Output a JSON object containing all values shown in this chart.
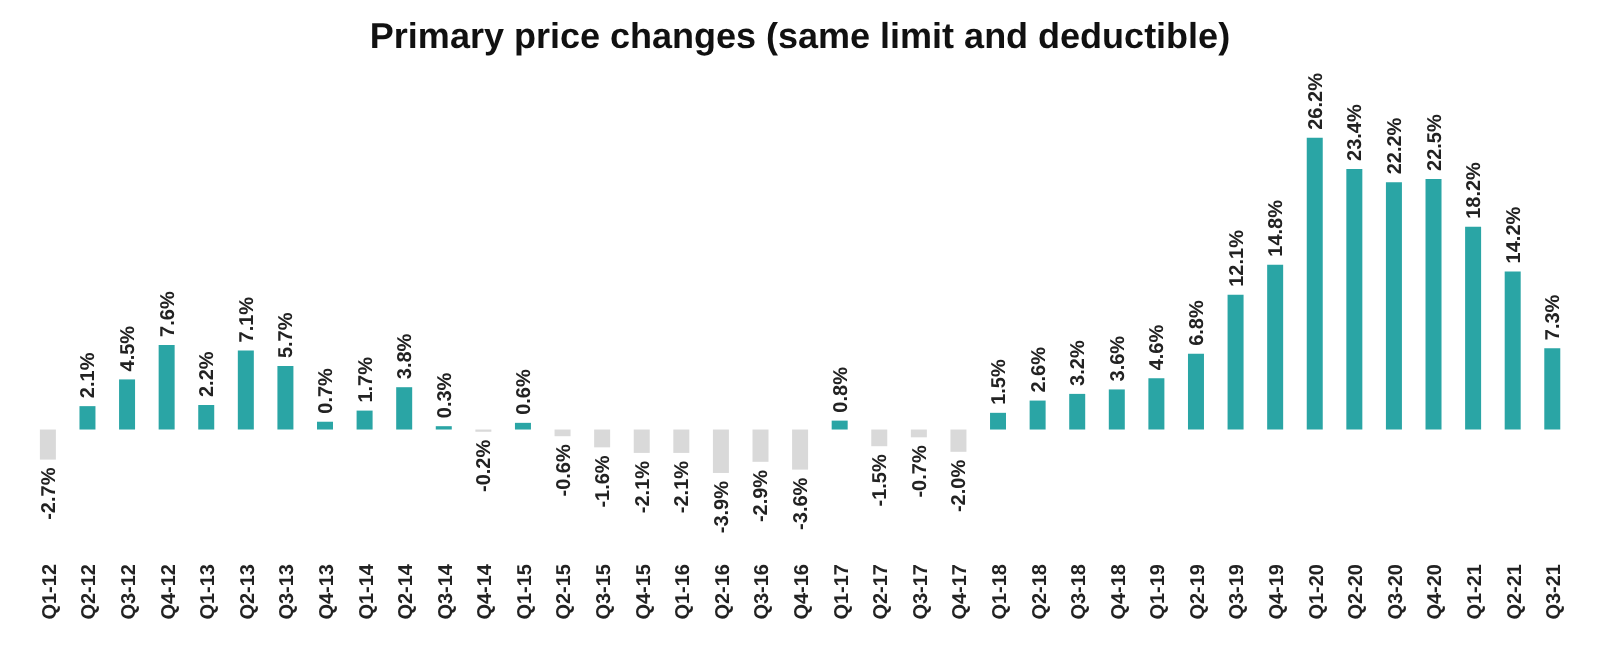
{
  "chart_data": {
    "type": "bar",
    "title": "Primary price changes (same limit and deductible)",
    "categories": [
      "Q1-12",
      "Q2-12",
      "Q3-12",
      "Q4-12",
      "Q1-13",
      "Q2-13",
      "Q3-13",
      "Q4-13",
      "Q1-14",
      "Q2-14",
      "Q3-14",
      "Q4-14",
      "Q1-15",
      "Q2-15",
      "Q3-15",
      "Q4-15",
      "Q1-16",
      "Q2-16",
      "Q3-16",
      "Q4-16",
      "Q1-17",
      "Q2-17",
      "Q3-17",
      "Q4-17",
      "Q1-18",
      "Q2-18",
      "Q3-18",
      "Q4-18",
      "Q1-19",
      "Q2-19",
      "Q3-19",
      "Q4-19",
      "Q1-20",
      "Q2-20",
      "Q3-20",
      "Q4-20",
      "Q1-21",
      "Q2-21",
      "Q3-21"
    ],
    "values": [
      -2.7,
      2.1,
      4.5,
      7.6,
      2.2,
      7.1,
      5.7,
      0.7,
      1.7,
      3.8,
      0.3,
      -0.2,
      0.6,
      -0.6,
      -1.6,
      -2.1,
      -2.1,
      -3.9,
      -2.9,
      -3.6,
      0.8,
      -1.5,
      -0.7,
      -2.0,
      1.5,
      2.6,
      3.2,
      3.6,
      4.6,
      6.8,
      12.1,
      14.8,
      26.2,
      23.4,
      22.2,
      22.5,
      18.2,
      14.2,
      7.3
    ],
    "value_labels": [
      "-2.7%",
      "2.1%",
      "4.5%",
      "7.6%",
      "2.2%",
      "7.1%",
      "5.7%",
      "0.7%",
      "1.7%",
      "3.8%",
      "0.3%",
      "-0.2%",
      "0.6%",
      "-0.6%",
      "-1.6%",
      "-2.1%",
      "-2.1%",
      "-3.9%",
      "-2.9%",
      "-3.6%",
      "0.8%",
      "-1.5%",
      "-0.7%",
      "-2.0%",
      "1.5%",
      "2.6%",
      "3.2%",
      "3.6%",
      "4.6%",
      "6.8%",
      "12.1%",
      "14.8%",
      "26.2%",
      "23.4%",
      "22.2%",
      "22.5%",
      "18.2%",
      "14.2%",
      "7.3%"
    ],
    "colors": [
      "#d9d9d9",
      "#2aa5a5",
      "#2aa5a5",
      "#2aa5a5",
      "#2aa5a5",
      "#2aa5a5",
      "#2aa5a5",
      "#2aa5a5",
      "#2aa5a5",
      "#2aa5a5",
      "#2aa5a5",
      "#d9d9d9",
      "#2aa5a5",
      "#d9d9d9",
      "#d9d9d9",
      "#d9d9d9",
      "#d9d9d9",
      "#d9d9d9",
      "#d9d9d9",
      "#d9d9d9",
      "#2aa5a5",
      "#d9d9d9",
      "#d9d9d9",
      "#d9d9d9",
      "#2aa5a5",
      "#2aa5a5",
      "#2aa5a5",
      "#2aa5a5",
      "#2aa5a5",
      "#2aa5a5",
      "#2aa5a5",
      "#2aa5a5",
      "#2aa5a5",
      "#2aa5a5",
      "#2aa5a5",
      "#2aa5a5",
      "#2aa5a5",
      "#2aa5a5",
      "#2aa5a5"
    ],
    "grid": false,
    "legend": false
  }
}
